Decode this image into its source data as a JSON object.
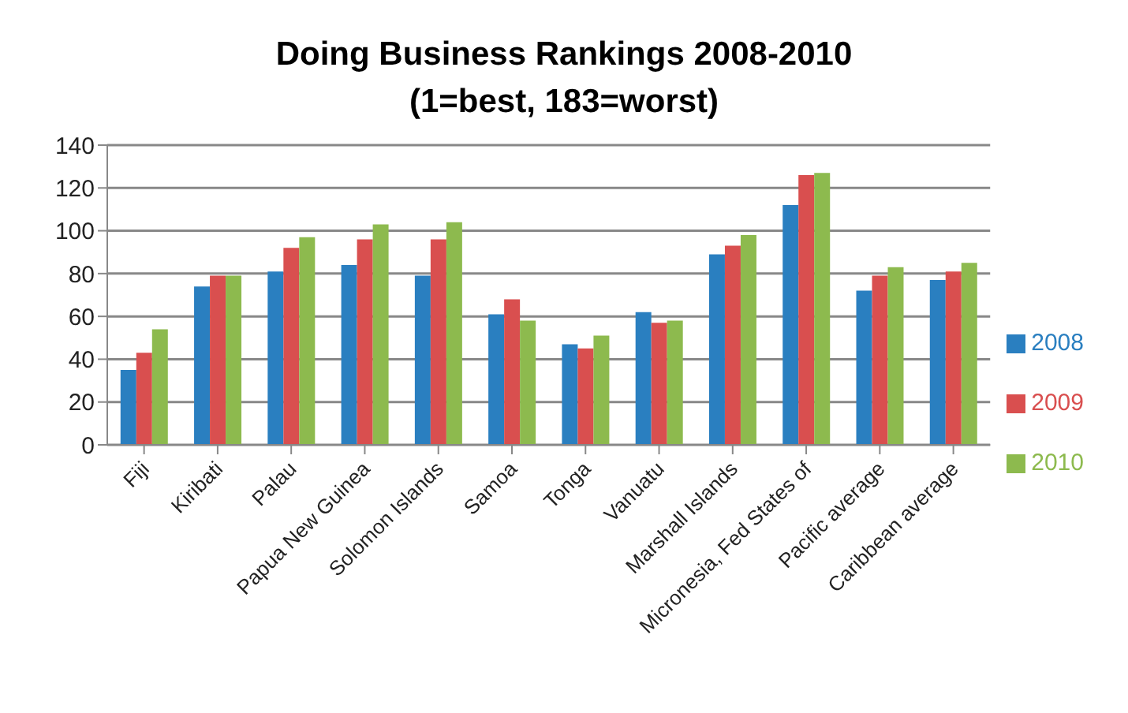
{
  "chart_data": {
    "type": "bar",
    "title": "Doing Business Rankings 2008-2010",
    "subtitle": "(1=best, 183=worst)",
    "categories": [
      "Fiji",
      "Kiribati",
      "Palau",
      "Papua New Guinea",
      "Solomon Islands",
      "Samoa",
      "Tonga",
      "Vanuatu",
      "Marshall Islands",
      "Micronesia, Fed States of",
      "Pacific average",
      "Caribbean average"
    ],
    "series": [
      {
        "name": "2008",
        "color": "#2a7fc0",
        "values": [
          35,
          74,
          81,
          84,
          79,
          61,
          47,
          62,
          89,
          112,
          72,
          77
        ]
      },
      {
        "name": "2009",
        "color": "#d94f4f",
        "values": [
          43,
          79,
          92,
          96,
          96,
          68,
          45,
          57,
          93,
          126,
          79,
          81
        ]
      },
      {
        "name": "2010",
        "color": "#8dba4e",
        "values": [
          54,
          79,
          97,
          103,
          104,
          58,
          51,
          58,
          98,
          127,
          83,
          85
        ]
      }
    ],
    "ylim": [
      0,
      140
    ],
    "yticks": [
      0,
      20,
      40,
      60,
      80,
      100,
      120,
      140
    ],
    "grid": "y",
    "legend": "right"
  }
}
